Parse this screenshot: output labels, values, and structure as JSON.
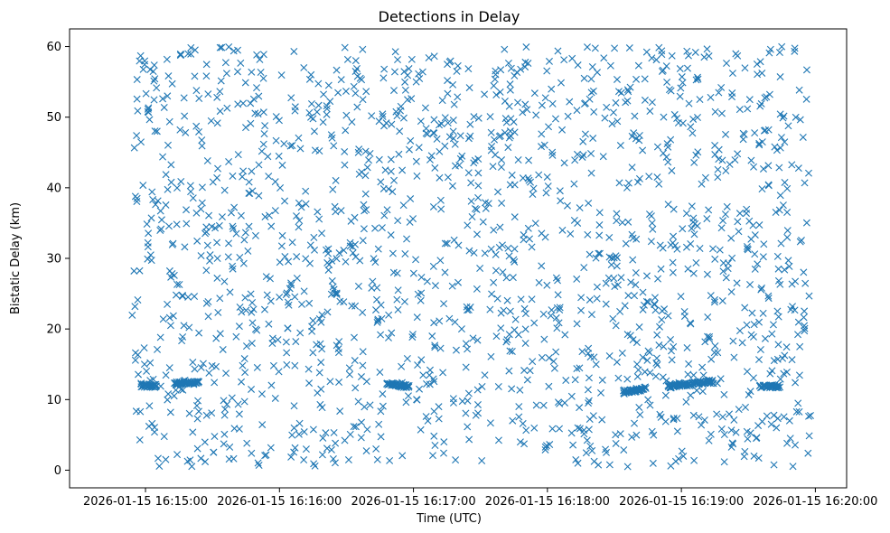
{
  "chart_data": {
    "type": "scatter",
    "title": "Detections in Delay",
    "xlabel": "Time (UTC)",
    "ylabel": "Bistatic Delay (km)",
    "marker": "x",
    "color": "#1f77b4",
    "grid": false,
    "legend": "none",
    "x_start": "2026-01-15 16:14:54",
    "x_end": "2026-01-15 16:19:58",
    "xlim": [
      "2026-01-15 16:14:26",
      "2026-01-15 16:20:14"
    ],
    "ylim": [
      -2.5,
      62.5
    ],
    "x_ticks": [
      "2026-01-15 16:15:00",
      "2026-01-15 16:16:00",
      "2026-01-15 16:17:00",
      "2026-01-15 16:18:00",
      "2026-01-15 16:19:00",
      "2026-01-15 16:20:00"
    ],
    "y_ticks": [
      "0",
      "10",
      "20",
      "30",
      "40",
      "50",
      "60"
    ],
    "approx_detection_count": 1900,
    "noise_delay_range": [
      0.5,
      60
    ],
    "track_segments": [
      {
        "start": "2026-01-15 16:14:58",
        "end": "2026-01-15 16:15:05",
        "delay_start": 12.0,
        "delay_end": 11.9
      },
      {
        "start": "2026-01-15 16:15:13",
        "end": "2026-01-15 16:15:24",
        "delay_start": 12.3,
        "delay_end": 12.4
      },
      {
        "start": "2026-01-15 16:16:48",
        "end": "2026-01-15 16:16:58",
        "delay_start": 12.3,
        "delay_end": 11.8
      },
      {
        "start": "2026-01-15 16:18:34",
        "end": "2026-01-15 16:18:44",
        "delay_start": 11.0,
        "delay_end": 11.6
      },
      {
        "start": "2026-01-15 16:18:54",
        "end": "2026-01-15 16:19:14",
        "delay_start": 11.8,
        "delay_end": 12.6
      },
      {
        "start": "2026-01-15 16:19:35",
        "end": "2026-01-15 16:19:44",
        "delay_start": 11.8,
        "delay_end": 11.9
      }
    ]
  }
}
